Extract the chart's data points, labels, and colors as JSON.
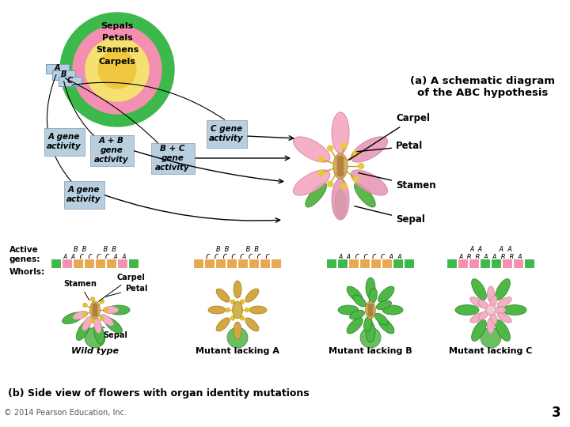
{
  "bg_color": "#ffffff",
  "title_a": "(a) A schematic diagram\nof the ABC hypothesis",
  "title_b": "(b) Side view of flowers with organ identity mutations",
  "copyright": "© 2014 Pearson Education, Inc.",
  "page_num": "3",
  "circle_colors": [
    "#3db84a",
    "#f48fb1",
    "#f5e070",
    "#f0c840"
  ],
  "gene_box_color": "#b8cfe0",
  "wt_whorls": [
    "#3db84a",
    "#f48fb1",
    "#e8a850",
    "#e8a850",
    "#e8a850",
    "#e8a850",
    "#f48fb1",
    "#3db84a"
  ],
  "mutA_whorls": [
    "#e8a850",
    "#e8a850",
    "#e8a850",
    "#e8a850",
    "#e8a850",
    "#e8a850",
    "#e8a850",
    "#e8a850"
  ],
  "mutB_whorls": [
    "#3db84a",
    "#3db84a",
    "#e8a850",
    "#e8a850",
    "#e8a850",
    "#e8a850",
    "#3db84a",
    "#3db84a"
  ],
  "mutC_whorls": [
    "#3db84a",
    "#f48fb1",
    "#f48fb1",
    "#3db84a",
    "#3db84a",
    "#f48fb1",
    "#f48fb1",
    "#3db84a"
  ],
  "flower_type_labels": [
    "Wild type",
    "Mutant lacking A",
    "Mutant lacking B",
    "Mutant lacking C"
  ]
}
